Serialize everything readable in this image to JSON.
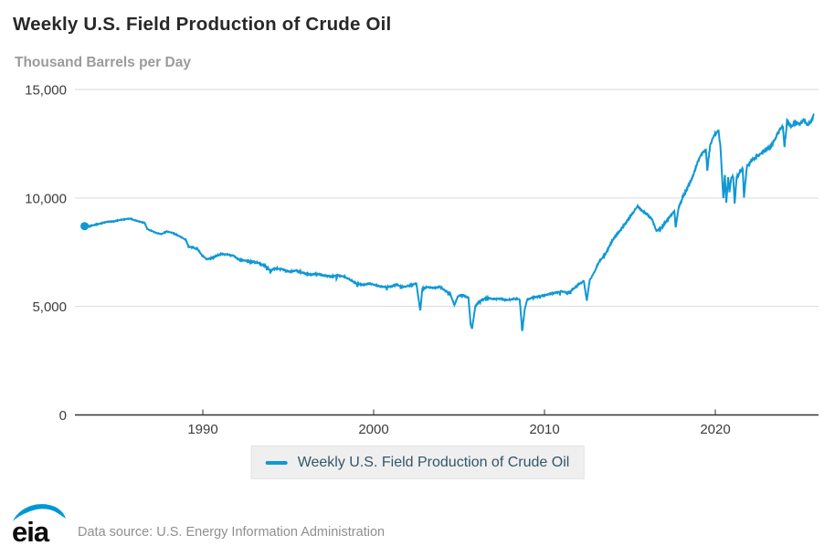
{
  "header": {
    "title": "Weekly U.S. Field Production of Crude Oil",
    "subtitle": "Thousand Barrels per Day"
  },
  "legend": {
    "label": "Weekly U.S. Field Production of Crude Oil"
  },
  "footer": {
    "logo_text": "eia",
    "source_text": "Data source: U.S. Energy Information Administration"
  },
  "colors": {
    "line": "#0f98d4",
    "grid": "#d9d9d9",
    "axis": "#333333",
    "tick_text": "#3c3c3c"
  },
  "chart_data": {
    "type": "line",
    "title": "Weekly U.S. Field Production of Crude Oil",
    "ylabel": "Thousand Barrels per Day",
    "series_name": "Weekly U.S. Field Production of Crude Oil",
    "grid": true,
    "legend_position": "bottom",
    "x_range": [
      1982.6,
      2026.2
    ],
    "y_range": [
      0,
      15000
    ],
    "x_ticks": [
      1990,
      2000,
      2010,
      2020
    ],
    "x_tick_labels": [
      "1990",
      "2000",
      "2010",
      "2020"
    ],
    "y_ticks": [
      0,
      5000,
      10000,
      15000
    ],
    "y_tick_labels": [
      "0",
      "5,000",
      "10,000",
      "15,000"
    ],
    "start_marker": true,
    "points": [
      [
        1983.08,
        8700
      ],
      [
        1983.3,
        8680
      ],
      [
        1983.6,
        8750
      ],
      [
        1984.0,
        8820
      ],
      [
        1984.4,
        8900
      ],
      [
        1984.8,
        8920
      ],
      [
        1985.1,
        8980
      ],
      [
        1985.45,
        9020
      ],
      [
        1985.75,
        9050
      ],
      [
        1986.0,
        8980
      ],
      [
        1986.35,
        8900
      ],
      [
        1986.6,
        8850
      ],
      [
        1986.75,
        8560
      ],
      [
        1987.0,
        8480
      ],
      [
        1987.3,
        8380
      ],
      [
        1987.6,
        8340
      ],
      [
        1987.9,
        8460
      ],
      [
        1988.2,
        8400
      ],
      [
        1988.6,
        8250
      ],
      [
        1989.0,
        8080
      ],
      [
        1989.15,
        7760
      ],
      [
        1989.4,
        7720
      ],
      [
        1989.7,
        7640
      ],
      [
        1989.95,
        7350
      ],
      [
        1990.2,
        7180
      ],
      [
        1990.5,
        7220
      ],
      [
        1990.8,
        7330
      ],
      [
        1991.1,
        7420
      ],
      [
        1991.45,
        7390
      ],
      [
        1991.8,
        7340
      ],
      [
        1992.1,
        7160
      ],
      [
        1992.5,
        7110
      ],
      [
        1992.9,
        7060
      ],
      [
        1993.3,
        7000
      ],
      [
        1993.65,
        6870
      ],
      [
        1993.95,
        6660
      ],
      [
        1994.3,
        6760
      ],
      [
        1994.7,
        6710
      ],
      [
        1995.1,
        6600
      ],
      [
        1995.5,
        6660
      ],
      [
        1995.9,
        6540
      ],
      [
        1996.3,
        6460
      ],
      [
        1996.7,
        6510
      ],
      [
        1997.1,
        6420
      ],
      [
        1997.5,
        6380
      ],
      [
        1997.9,
        6430
      ],
      [
        1998.3,
        6370
      ],
      [
        1998.65,
        6220
      ],
      [
        1999.0,
        6050
      ],
      [
        1999.4,
        6000
      ],
      [
        1999.8,
        6060
      ],
      [
        2000.2,
        5960
      ],
      [
        2000.6,
        5900
      ],
      [
        2001.0,
        5910
      ],
      [
        2001.35,
        6010
      ],
      [
        2001.7,
        5900
      ],
      [
        2002.1,
        5950
      ],
      [
        2002.5,
        6060
      ],
      [
        2002.73,
        4800
      ],
      [
        2002.85,
        5820
      ],
      [
        2003.1,
        5890
      ],
      [
        2003.5,
        5860
      ],
      [
        2003.9,
        5900
      ],
      [
        2004.2,
        5720
      ],
      [
        2004.5,
        5560
      ],
      [
        2004.72,
        5060
      ],
      [
        2004.95,
        5480
      ],
      [
        2005.25,
        5520
      ],
      [
        2005.55,
        5400
      ],
      [
        2005.68,
        4150
      ],
      [
        2005.76,
        3980
      ],
      [
        2005.95,
        5000
      ],
      [
        2006.2,
        5240
      ],
      [
        2006.6,
        5400
      ],
      [
        2007.0,
        5340
      ],
      [
        2007.4,
        5360
      ],
      [
        2007.8,
        5290
      ],
      [
        2008.2,
        5350
      ],
      [
        2008.55,
        5330
      ],
      [
        2008.7,
        3870
      ],
      [
        2008.85,
        4900
      ],
      [
        2009.0,
        5330
      ],
      [
        2009.4,
        5420
      ],
      [
        2009.8,
        5480
      ],
      [
        2010.2,
        5560
      ],
      [
        2010.6,
        5620
      ],
      [
        2011.0,
        5700
      ],
      [
        2011.35,
        5620
      ],
      [
        2011.7,
        5820
      ],
      [
        2012.0,
        6020
      ],
      [
        2012.3,
        6180
      ],
      [
        2012.48,
        5280
      ],
      [
        2012.65,
        6220
      ],
      [
        2012.9,
        6550
      ],
      [
        2013.2,
        7080
      ],
      [
        2013.6,
        7450
      ],
      [
        2014.0,
        8080
      ],
      [
        2014.4,
        8480
      ],
      [
        2014.8,
        8900
      ],
      [
        2015.15,
        9300
      ],
      [
        2015.45,
        9610
      ],
      [
        2015.75,
        9400
      ],
      [
        2016.05,
        9220
      ],
      [
        2016.3,
        9000
      ],
      [
        2016.55,
        8500
      ],
      [
        2016.8,
        8560
      ],
      [
        2017.1,
        8900
      ],
      [
        2017.35,
        9150
      ],
      [
        2017.6,
        9400
      ],
      [
        2017.68,
        8650
      ],
      [
        2017.85,
        9550
      ],
      [
        2018.1,
        10050
      ],
      [
        2018.4,
        10500
      ],
      [
        2018.7,
        11000
      ],
      [
        2019.0,
        11750
      ],
      [
        2019.25,
        12100
      ],
      [
        2019.45,
        12250
      ],
      [
        2019.53,
        11300
      ],
      [
        2019.7,
        12450
      ],
      [
        2019.95,
        12950
      ],
      [
        2020.18,
        13100
      ],
      [
        2020.3,
        12400
      ],
      [
        2020.4,
        10900
      ],
      [
        2020.47,
        9950
      ],
      [
        2020.56,
        11050
      ],
      [
        2020.64,
        9750
      ],
      [
        2020.75,
        10950
      ],
      [
        2020.83,
        10300
      ],
      [
        2020.95,
        11000
      ],
      [
        2021.05,
        10950
      ],
      [
        2021.13,
        9750
      ],
      [
        2021.25,
        10950
      ],
      [
        2021.45,
        11200
      ],
      [
        2021.6,
        11350
      ],
      [
        2021.68,
        10050
      ],
      [
        2021.85,
        11450
      ],
      [
        2022.1,
        11700
      ],
      [
        2022.4,
        11900
      ],
      [
        2022.7,
        12050
      ],
      [
        2023.0,
        12250
      ],
      [
        2023.3,
        12400
      ],
      [
        2023.55,
        12800
      ],
      [
        2023.8,
        13200
      ],
      [
        2023.95,
        13300
      ],
      [
        2024.05,
        12350
      ],
      [
        2024.2,
        13550
      ],
      [
        2024.45,
        13300
      ],
      [
        2024.7,
        13500
      ],
      [
        2024.95,
        13400
      ],
      [
        2025.2,
        13600
      ],
      [
        2025.4,
        13350
      ],
      [
        2025.6,
        13550
      ],
      [
        2025.78,
        13850
      ]
    ]
  }
}
